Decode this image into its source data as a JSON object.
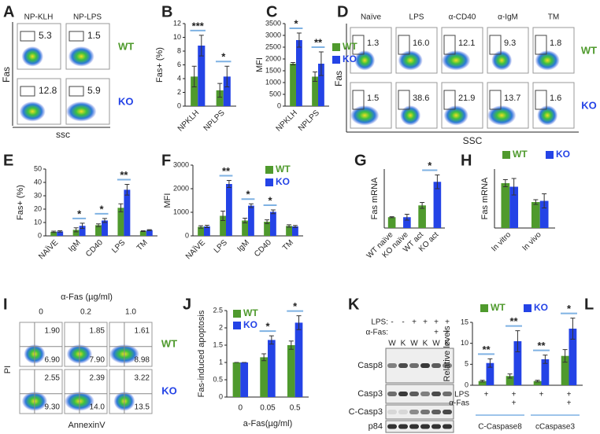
{
  "panel_letters": [
    "A",
    "B",
    "C",
    "D",
    "E",
    "F",
    "G",
    "H",
    "I",
    "J",
    "K",
    "L"
  ],
  "flow_a": {
    "columns": [
      "NP-KLH",
      "NP-LPS"
    ],
    "rows": [
      {
        "label": "WT",
        "values": [
          "5.3",
          "1.5"
        ]
      },
      {
        "label": "KO",
        "values": [
          "12.8",
          "5.9"
        ]
      }
    ],
    "y_label": "Fas",
    "x_label": "ssc"
  },
  "flow_d": {
    "columns": [
      "Naïve",
      "LPS",
      "α-CD40",
      "α-IgM",
      "TM"
    ],
    "rows": [
      {
        "label": "WT",
        "values": [
          "1.3",
          "16.0",
          "12.1",
          "9.3",
          "1.8"
        ]
      },
      {
        "label": "KO",
        "values": [
          "1.5",
          "38.6",
          "21.9",
          "13.7",
          "1.6"
        ]
      }
    ],
    "y_label": "Fas",
    "x_label": "SSC"
  },
  "flow_i": {
    "title": "α-Fas (µg/ml)",
    "columns": [
      "0",
      "0.2",
      "1.0"
    ],
    "rows": [
      {
        "label": "WT",
        "upper": [
          "1.90",
          "1.85",
          "1.61"
        ],
        "lower": [
          "6.90",
          "7.90",
          "8.98"
        ]
      },
      {
        "label": "KO",
        "upper": [
          "2.55",
          "2.39",
          "3.22"
        ],
        "lower": [
          "9.30",
          "14.0",
          "13.5"
        ]
      }
    ],
    "y_label": "PI",
    "x_label": "AnnexinV"
  },
  "blot_k": {
    "treatments": [
      {
        "label": "LPS:",
        "values": [
          "-",
          "-",
          "+",
          "+",
          "+",
          "+"
        ]
      },
      {
        "label": "α-Fas:",
        "values": [
          null,
          null,
          null,
          null,
          "+",
          "+"
        ]
      }
    ],
    "lanes": [
      "W",
      "K",
      "W",
      "K",
      "W",
      "K"
    ],
    "proteins": [
      "Casp8",
      "Casp3",
      "C-Casp3",
      "p84"
    ]
  },
  "chart_data": [
    {
      "type": "bar",
      "y_label": "Fas+ (%)",
      "categories": [
        "NPKLH",
        "NPLPS"
      ],
      "rotate_labels": true,
      "series": [
        {
          "name": "WT",
          "color": "#4f9a2d",
          "values": [
            4.3,
            2.3
          ],
          "errors": [
            1.5,
            1.0
          ]
        },
        {
          "name": "KO",
          "color": "#2443e6",
          "values": [
            8.8,
            4.3
          ],
          "errors": [
            1.5,
            1.5
          ]
        }
      ],
      "ylim": [
        0,
        12
      ],
      "yticks": [
        0,
        2,
        4,
        6,
        8,
        10,
        12
      ],
      "significance": [
        "***",
        "*"
      ]
    },
    {
      "type": "bar",
      "y_label": "MFI",
      "categories": [
        "NPKLH",
        "NPLPS"
      ],
      "rotate_labels": true,
      "legend": "right",
      "series": [
        {
          "name": "WT",
          "color": "#4f9a2d",
          "values": [
            1800,
            1250
          ],
          "errors": [
            50,
            200
          ]
        },
        {
          "name": "KO",
          "color": "#2443e6",
          "values": [
            2800,
            1800
          ],
          "errors": [
            300,
            500
          ]
        }
      ],
      "ylim": [
        0,
        3500
      ],
      "yticks": [
        0,
        500,
        1000,
        1500,
        2000,
        2500,
        3000,
        3500
      ],
      "significance": [
        "*",
        "**"
      ]
    },
    {
      "type": "bar",
      "y_label": "Fas+ (%)",
      "categories": [
        "NAÏVE",
        "IgM",
        "CD40",
        "LPS",
        "TM"
      ],
      "rotate_labels": true,
      "series": [
        {
          "name": "WT",
          "color": "#4f9a2d",
          "values": [
            3,
            4.5,
            8,
            21,
            3.5
          ],
          "errors": [
            0.5,
            1.5,
            1,
            3,
            0.3
          ]
        },
        {
          "name": "KO",
          "color": "#2443e6",
          "values": [
            3.3,
            7.5,
            11.5,
            34.5,
            4.3
          ],
          "errors": [
            0.5,
            2,
            1.5,
            4,
            0.3
          ]
        }
      ],
      "ylim": [
        0,
        50
      ],
      "yticks": [
        0,
        10,
        20,
        30,
        40,
        50
      ],
      "significance": [
        null,
        "*",
        "*",
        "**",
        null
      ]
    },
    {
      "type": "bar",
      "y_label": "MFI",
      "categories": [
        "NAÏVE",
        "LPS",
        "IgM",
        "CD40",
        "TM"
      ],
      "rotate_labels": true,
      "legend": "upper right",
      "series": [
        {
          "name": "WT",
          "color": "#4f9a2d",
          "values": [
            380,
            850,
            650,
            600,
            420
          ],
          "errors": [
            50,
            200,
            100,
            80,
            50
          ]
        },
        {
          "name": "KO",
          "color": "#2443e6",
          "values": [
            400,
            2200,
            1280,
            1020,
            400
          ],
          "errors": [
            50,
            150,
            80,
            80,
            40
          ]
        }
      ],
      "ylim": [
        0,
        3000
      ],
      "yticks": [
        0,
        1000,
        2000,
        3000
      ],
      "significance": [
        null,
        "**",
        "*",
        "*",
        null
      ]
    },
    {
      "type": "bar",
      "y_label": "Fas mRNA",
      "categories": [
        "WT naïve",
        "KO naïve",
        "WT act",
        "KO act"
      ],
      "rotate_labels": true,
      "values": [
        1.1,
        1.1,
        2.3,
        4.7
      ],
      "errors": [
        0.05,
        0.3,
        0.3,
        0.7
      ],
      "colors": [
        "#4f9a2d",
        "#2443e6",
        "#4f9a2d",
        "#2443e6"
      ],
      "ylim": [
        0,
        6
      ],
      "significance": [
        null,
        null,
        null,
        "*"
      ]
    },
    {
      "type": "bar",
      "y_label": "Fas mRNA",
      "categories": [
        "In vitro",
        "In vivo"
      ],
      "rotate_labels": true,
      "legend": "top",
      "series": [
        {
          "name": "WT",
          "color": "#4f9a2d",
          "values": [
            3.8,
            2.2
          ],
          "errors": [
            0.3,
            0.2
          ]
        },
        {
          "name": "KO",
          "color": "#2443e6",
          "values": [
            3.5,
            2.3
          ],
          "errors": [
            0.7,
            0.6
          ]
        }
      ],
      "ylim": [
        0,
        5
      ]
    },
    {
      "type": "bar",
      "y_label": "Fas-induced apoptosis",
      "x_label": "a-Fas(µg/ml)",
      "categories": [
        "0",
        "0.05",
        "0.5"
      ],
      "legend": "upper left",
      "series": [
        {
          "name": "WT",
          "color": "#4f9a2d",
          "values": [
            1,
            1.15,
            1.5
          ],
          "errors": [
            0,
            0.1,
            0.12
          ]
        },
        {
          "name": "KO",
          "color": "#2443e6",
          "values": [
            1,
            1.65,
            2.15
          ],
          "errors": [
            0,
            0.12,
            0.2
          ]
        }
      ],
      "ylim": [
        0,
        2.5
      ],
      "yticks": [
        0,
        0.5,
        1,
        1.5,
        2,
        2.5
      ],
      "significance": [
        null,
        "*",
        "*"
      ]
    },
    {
      "type": "bar",
      "y_label": "Relative levels",
      "categories": [
        null,
        null,
        null,
        null
      ],
      "legend": "top",
      "rows": [
        {
          "label": "LPS",
          "values": [
            "+",
            "+",
            "+",
            "+"
          ]
        },
        {
          "label": "α-Fas",
          "values": [
            null,
            "+",
            null,
            "+"
          ]
        }
      ],
      "groups": [
        "C-Caspase8",
        "cCaspase3"
      ],
      "series": [
        {
          "name": "WT",
          "color": "#4f9a2d",
          "values": [
            1,
            2.2,
            1,
            7
          ],
          "errors": [
            0.2,
            0.5,
            0.2,
            1.5
          ]
        },
        {
          "name": "KO",
          "color": "#2443e6",
          "values": [
            5.3,
            10.5,
            6.2,
            13.5
          ],
          "errors": [
            1,
            2.5,
            1,
            2.5
          ]
        }
      ],
      "ylim": [
        0,
        15
      ],
      "yticks": [
        0,
        5,
        10,
        15
      ],
      "significance": [
        "**",
        "**",
        "**",
        "*"
      ]
    }
  ]
}
